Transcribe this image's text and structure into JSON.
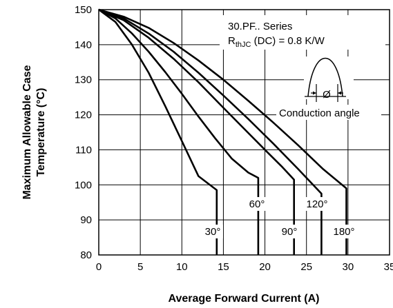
{
  "chart_data": {
    "type": "line",
    "xlabel": "Average Forward Current (A)",
    "ylabel_lines": [
      "Maximum Allowable Case",
      "Temperature (°C)"
    ],
    "xlim": [
      0,
      35
    ],
    "ylim": [
      80,
      150
    ],
    "x_ticks": [
      0,
      5,
      10,
      15,
      20,
      25,
      30,
      35
    ],
    "y_ticks": [
      80,
      90,
      100,
      110,
      120,
      130,
      140,
      150
    ],
    "grid": true,
    "annotation": {
      "series_name": "30.PF.. Series",
      "r_main": "R",
      "r_sub": "thJC",
      "r_rest": " (DC) = 0.8 K/W",
      "diagram_symbol": "Ø",
      "diagram_label": "Conduction angle"
    },
    "series": [
      {
        "name": "30°",
        "points": [
          [
            0,
            150
          ],
          [
            2,
            146.5
          ],
          [
            4,
            140
          ],
          [
            6,
            132
          ],
          [
            8,
            122.5
          ],
          [
            10,
            112.5
          ],
          [
            12,
            102.5
          ],
          [
            14.2,
            98.5
          ],
          [
            14.2,
            80
          ]
        ]
      },
      {
        "name": "60°",
        "points": [
          [
            0,
            150
          ],
          [
            2,
            147.5
          ],
          [
            4,
            143.2
          ],
          [
            6,
            138
          ],
          [
            8,
            132.2
          ],
          [
            10,
            126
          ],
          [
            12,
            119.5
          ],
          [
            14,
            113.3
          ],
          [
            16,
            107.5
          ],
          [
            18,
            103.5
          ],
          [
            19.2,
            102
          ],
          [
            19.2,
            80
          ]
        ]
      },
      {
        "name": "90°",
        "points": [
          [
            0,
            150
          ],
          [
            3,
            147
          ],
          [
            6,
            142
          ],
          [
            9,
            136
          ],
          [
            12,
            129.3
          ],
          [
            15,
            122
          ],
          [
            18,
            114.8
          ],
          [
            20,
            110
          ],
          [
            22,
            105.3
          ],
          [
            23.5,
            101.5
          ],
          [
            23.5,
            80
          ]
        ]
      },
      {
        "name": "120°",
        "points": [
          [
            0,
            150
          ],
          [
            3,
            147.5
          ],
          [
            6,
            143.2
          ],
          [
            9,
            138
          ],
          [
            12,
            132
          ],
          [
            15,
            125.5
          ],
          [
            18,
            118.8
          ],
          [
            21,
            111.8
          ],
          [
            24,
            104.5
          ],
          [
            26.8,
            97.5
          ],
          [
            26.8,
            80
          ]
        ]
      },
      {
        "name": "180°",
        "points": [
          [
            0,
            150
          ],
          [
            3,
            148
          ],
          [
            6,
            144.8
          ],
          [
            9,
            140.5
          ],
          [
            12,
            135.5
          ],
          [
            15,
            130
          ],
          [
            18,
            124
          ],
          [
            21,
            117.8
          ],
          [
            24,
            111.3
          ],
          [
            27,
            104.5
          ],
          [
            29.8,
            99
          ],
          [
            29.8,
            80
          ]
        ]
      }
    ],
    "label_texts": [
      "30°",
      "60°",
      "90°",
      "120°",
      "180°"
    ]
  }
}
